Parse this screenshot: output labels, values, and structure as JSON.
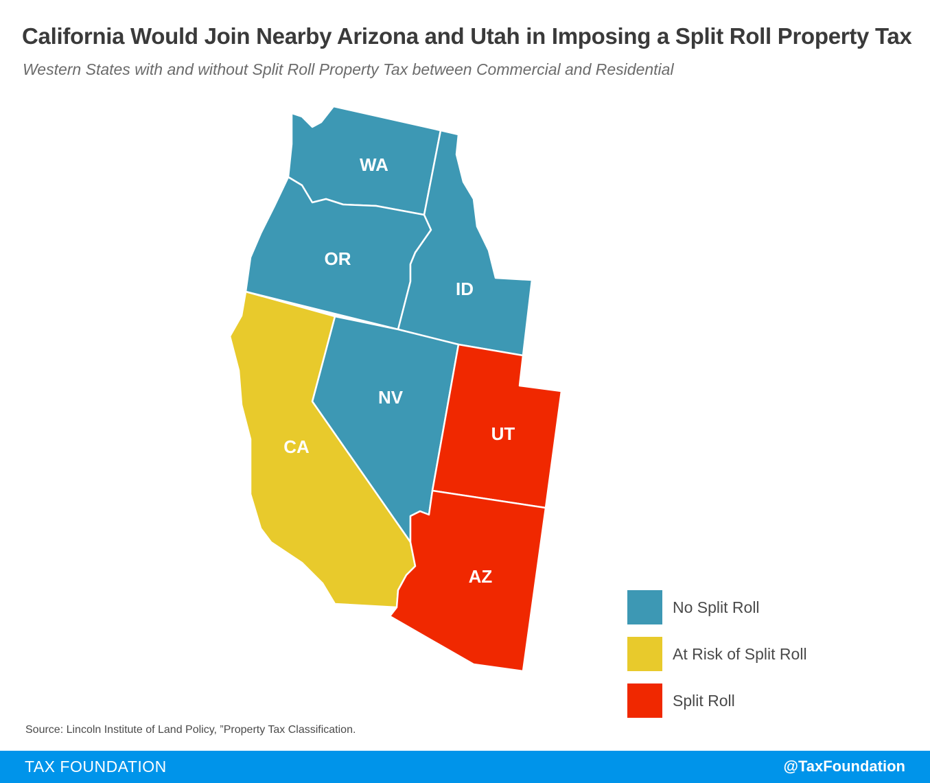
{
  "title": "California Would Join Nearby Arizona and Utah in Imposing a Split Roll Property Tax",
  "subtitle": "Western States with and without Split Roll Property Tax between Commercial and Residential",
  "colors": {
    "no_split_roll": "#3d98b4",
    "at_risk": "#e8ca2c",
    "split_roll": "#f02800"
  },
  "states": [
    {
      "abbr": "WA",
      "category": "no_split_roll"
    },
    {
      "abbr": "OR",
      "category": "no_split_roll"
    },
    {
      "abbr": "ID",
      "category": "no_split_roll"
    },
    {
      "abbr": "NV",
      "category": "no_split_roll"
    },
    {
      "abbr": "CA",
      "category": "at_risk"
    },
    {
      "abbr": "UT",
      "category": "split_roll"
    },
    {
      "abbr": "AZ",
      "category": "split_roll"
    }
  ],
  "legend": [
    {
      "label": "No Split Roll",
      "category": "no_split_roll"
    },
    {
      "label": "At Risk of Split Roll",
      "category": "at_risk"
    },
    {
      "label": "Split Roll",
      "category": "split_roll"
    }
  ],
  "source": "Source: Lincoln Institute of Land Policy, ”Property Tax Classification.",
  "footer": {
    "brand": "TAX FOUNDATION",
    "handle": "@TaxFoundation"
  }
}
